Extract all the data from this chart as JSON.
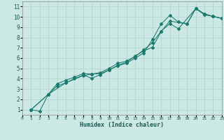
{
  "xlabel": "Humidex (Indice chaleur)",
  "background_color": "#cce8e4",
  "grid_color": "#b8d8d4",
  "line_color": "#1a7a6e",
  "xlim": [
    0,
    23
  ],
  "ylim": [
    0.5,
    11.5
  ],
  "xticks": [
    0,
    1,
    2,
    3,
    4,
    5,
    6,
    7,
    8,
    9,
    10,
    11,
    12,
    13,
    14,
    15,
    16,
    17,
    18,
    19,
    20,
    21,
    22,
    23
  ],
  "yticks": [
    1,
    2,
    3,
    4,
    5,
    6,
    7,
    8,
    9,
    10,
    11
  ],
  "line1_x": [
    1,
    2,
    3,
    4,
    5,
    6,
    7,
    8,
    9,
    10,
    11,
    12,
    13,
    14,
    15,
    16,
    17,
    18,
    19,
    20,
    21,
    22,
    23
  ],
  "line1_y": [
    1,
    0.85,
    2.5,
    3.3,
    3.6,
    4.0,
    4.35,
    4.05,
    4.4,
    4.85,
    5.25,
    5.5,
    6.0,
    6.5,
    7.8,
    9.3,
    10.15,
    9.5,
    9.35,
    10.8,
    10.2,
    10.05,
    9.85
  ],
  "line2_x": [
    1,
    3,
    4,
    5,
    6,
    7,
    8,
    9,
    10,
    11,
    12,
    13,
    14,
    15,
    16,
    17,
    18,
    20,
    21,
    22,
    23
  ],
  "line2_y": [
    1,
    2.5,
    3.5,
    3.85,
    4.15,
    4.5,
    4.45,
    4.6,
    5.0,
    5.5,
    5.7,
    6.15,
    6.8,
    7.5,
    8.6,
    9.35,
    8.85,
    10.8,
    10.3,
    10.05,
    9.85
  ],
  "line3_x": [
    1,
    3,
    5,
    7,
    8,
    9,
    10,
    11,
    12,
    13,
    14,
    15,
    16,
    17,
    19,
    20,
    21,
    22,
    23
  ],
  "line3_y": [
    1,
    2.5,
    3.6,
    4.3,
    4.45,
    4.5,
    4.85,
    5.3,
    5.6,
    6.2,
    6.7,
    7.05,
    8.55,
    9.6,
    9.3,
    10.85,
    10.25,
    10.05,
    9.85
  ]
}
